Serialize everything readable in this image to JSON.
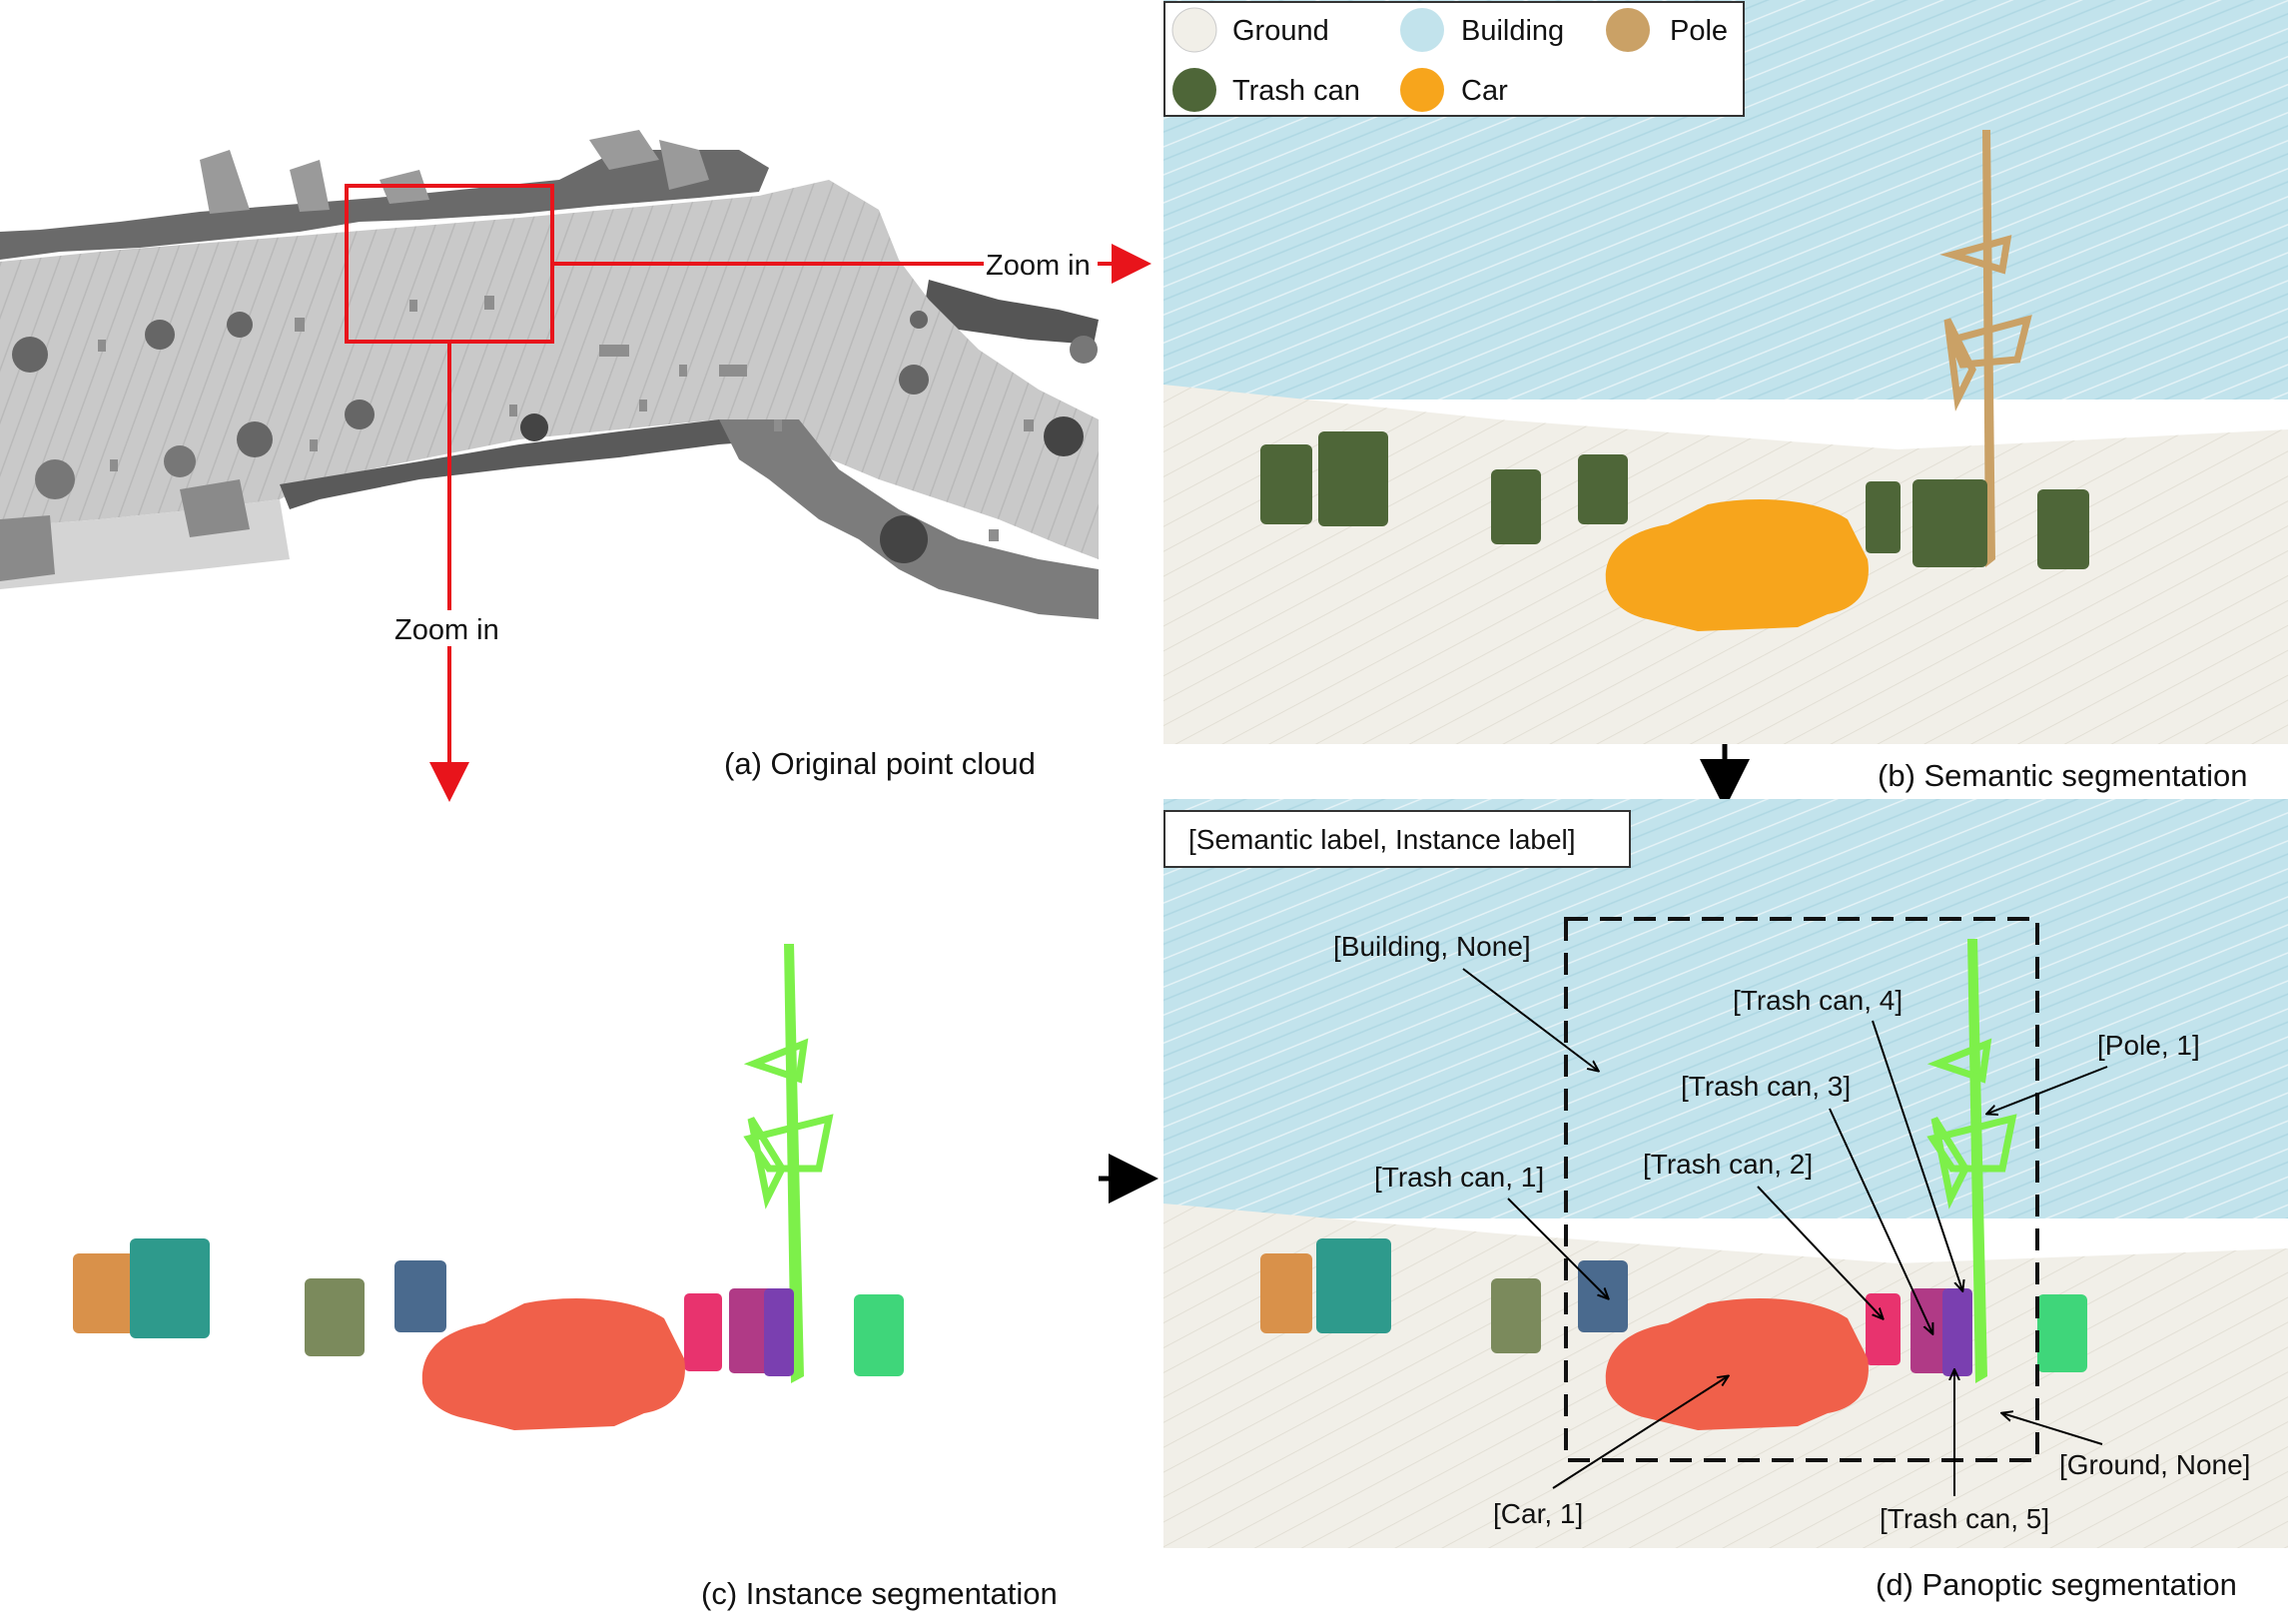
{
  "captions": {
    "a": "(a) Original point cloud",
    "b": "(b) Semantic segmentation",
    "c": "(c) Instance segmentation",
    "d": "(d) Panoptic segmentation"
  },
  "zoom": {
    "right": "Zoom in",
    "down": "Zoom in"
  },
  "legend": [
    {
      "label": "Ground",
      "color": "#f1efe8"
    },
    {
      "label": "Building",
      "color": "#c2e3ec"
    },
    {
      "label": "Pole",
      "color": "#caa166"
    },
    {
      "label": "Trash can",
      "color": "#4e6638"
    },
    {
      "label": "Car",
      "color": "#f7a51c"
    }
  ],
  "panoptic_header": "[Semantic label, Instance label]",
  "annotations": {
    "building": "[Building, None]",
    "trash4": "[Trash can, 4]",
    "pole1": "[Pole, 1]",
    "trash3": "[Trash can, 3]",
    "trash2": "[Trash can, 2]",
    "trash1": "[Trash can, 1]",
    "ground": "[Ground, None]",
    "car1": "[Car, 1]",
    "trash5": "[Trash can, 5]"
  },
  "colors": {
    "ground": "#f1efe8",
    "building": "#c2e3ec",
    "pole": "#caa166",
    "trash": "#4e6638",
    "car": "#f7a51c",
    "inst_pole": "#7df04a",
    "inst_car": "#f0604a",
    "inst_a": "#d9914a",
    "inst_b": "#2e9a8c",
    "inst_c": "#7b8a5c",
    "inst_d": "#4a6a8e",
    "inst_e": "#e8336e",
    "inst_f": "#b03a86",
    "inst_g": "#7a3fb0",
    "inst_h": "#3fd67a",
    "arrow_red": "#e8141b"
  }
}
